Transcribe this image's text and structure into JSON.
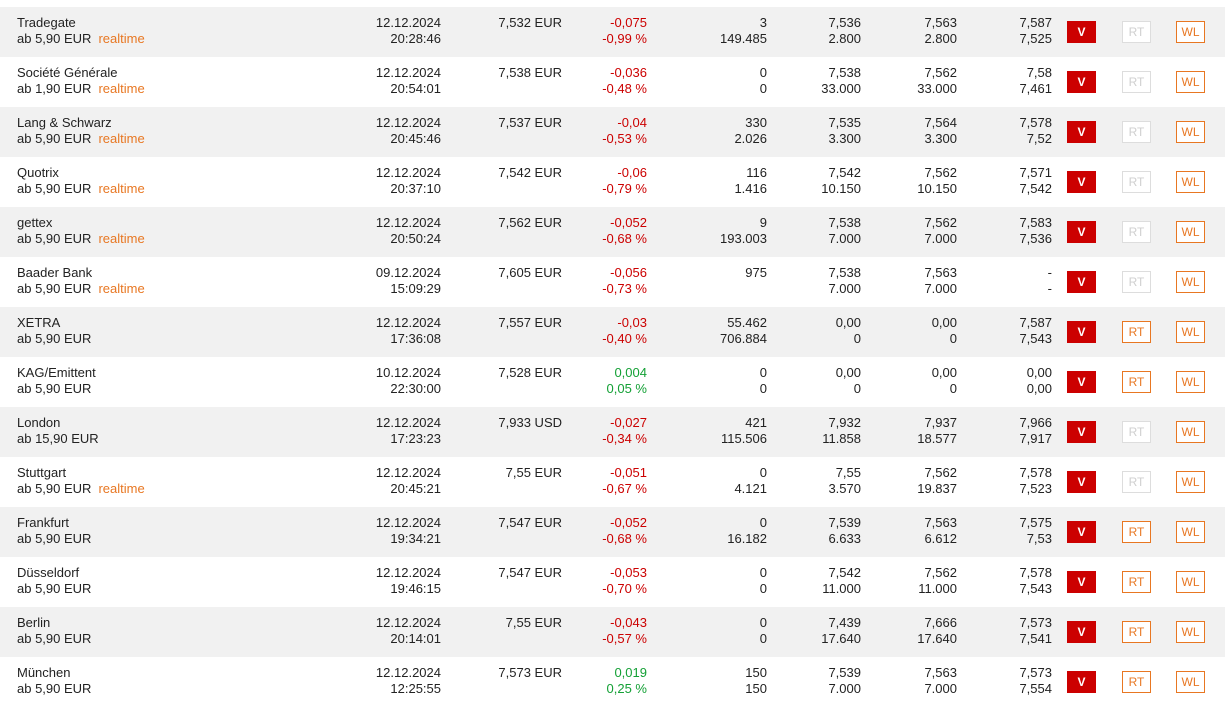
{
  "buttons": {
    "v": "V",
    "rt": "RT",
    "wl": "WL"
  },
  "colors": {
    "negative": "#cc0000",
    "positive": "#13a035",
    "accent": "#e87722",
    "v_button": "#cc0000"
  },
  "rows": [
    {
      "name": "Tradegate",
      "fee": "ab 5,90 EUR",
      "realtime": "realtime",
      "date": "12.12.2024",
      "time": "20:28:46",
      "price": "7,532 EUR",
      "change_abs": "-0,075",
      "change_pct": "-0,99 %",
      "trend": "neg",
      "vol1": "3",
      "vol2": "149.485",
      "bid": "7,536",
      "bid_size": "2.800",
      "ask": "7,563",
      "ask_size": "2.800",
      "high": "7,587",
      "low": "7,525",
      "rt_enabled": false
    },
    {
      "name": "Société Générale",
      "fee": "ab 1,90 EUR",
      "realtime": "realtime",
      "date": "12.12.2024",
      "time": "20:54:01",
      "price": "7,538 EUR",
      "change_abs": "-0,036",
      "change_pct": "-0,48 %",
      "trend": "neg",
      "vol1": "0",
      "vol2": "0",
      "bid": "7,538",
      "bid_size": "33.000",
      "ask": "7,562",
      "ask_size": "33.000",
      "high": "7,58",
      "low": "7,461",
      "rt_enabled": false
    },
    {
      "name": "Lang & Schwarz",
      "fee": "ab 5,90 EUR",
      "realtime": "realtime",
      "date": "12.12.2024",
      "time": "20:45:46",
      "price": "7,537 EUR",
      "change_abs": "-0,04",
      "change_pct": "-0,53 %",
      "trend": "neg",
      "vol1": "330",
      "vol2": "2.026",
      "bid": "7,535",
      "bid_size": "3.300",
      "ask": "7,564",
      "ask_size": "3.300",
      "high": "7,578",
      "low": "7,52",
      "rt_enabled": false
    },
    {
      "name": "Quotrix",
      "fee": "ab 5,90 EUR",
      "realtime": "realtime",
      "date": "12.12.2024",
      "time": "20:37:10",
      "price": "7,542 EUR",
      "change_abs": "-0,06",
      "change_pct": "-0,79 %",
      "trend": "neg",
      "vol1": "116",
      "vol2": "1.416",
      "bid": "7,542",
      "bid_size": "10.150",
      "ask": "7,562",
      "ask_size": "10.150",
      "high": "7,571",
      "low": "7,542",
      "rt_enabled": false
    },
    {
      "name": "gettex",
      "fee": "ab 5,90 EUR",
      "realtime": "realtime",
      "date": "12.12.2024",
      "time": "20:50:24",
      "price": "7,562 EUR",
      "change_abs": "-0,052",
      "change_pct": "-0,68 %",
      "trend": "neg",
      "vol1": "9",
      "vol2": "193.003",
      "bid": "7,538",
      "bid_size": "7.000",
      "ask": "7,562",
      "ask_size": "7.000",
      "high": "7,583",
      "low": "7,536",
      "rt_enabled": false
    },
    {
      "name": "Baader Bank",
      "fee": "ab 5,90 EUR",
      "realtime": "realtime",
      "date": "09.12.2024",
      "time": "15:09:29",
      "price": "7,605 EUR",
      "change_abs": "-0,056",
      "change_pct": "-0,73 %",
      "trend": "neg",
      "vol1": "975",
      "vol2": "",
      "bid": "7,538",
      "bid_size": "7.000",
      "ask": "7,563",
      "ask_size": "7.000",
      "high": "-",
      "low": "-",
      "rt_enabled": false
    },
    {
      "name": "XETRA",
      "fee": "ab 5,90 EUR",
      "realtime": "",
      "date": "12.12.2024",
      "time": "17:36:08",
      "price": "7,557 EUR",
      "change_abs": "-0,03",
      "change_pct": "-0,40 %",
      "trend": "neg",
      "vol1": "55.462",
      "vol2": "706.884",
      "bid": "0,00",
      "bid_size": "0",
      "ask": "0,00",
      "ask_size": "0",
      "high": "7,587",
      "low": "7,543",
      "rt_enabled": true
    },
    {
      "name": "KAG/Emittent",
      "fee": "ab 5,90 EUR",
      "realtime": "",
      "date": "10.12.2024",
      "time": "22:30:00",
      "price": "7,528 EUR",
      "change_abs": "0,004",
      "change_pct": "0,05 %",
      "trend": "pos",
      "vol1": "0",
      "vol2": "0",
      "bid": "0,00",
      "bid_size": "0",
      "ask": "0,00",
      "ask_size": "0",
      "high": "0,00",
      "low": "0,00",
      "rt_enabled": true
    },
    {
      "name": "London",
      "fee": "ab 15,90 EUR",
      "realtime": "",
      "date": "12.12.2024",
      "time": "17:23:23",
      "price": "7,933 USD",
      "change_abs": "-0,027",
      "change_pct": "-0,34 %",
      "trend": "neg",
      "vol1": "421",
      "vol2": "115.506",
      "bid": "7,932",
      "bid_size": "11.858",
      "ask": "7,937",
      "ask_size": "18.577",
      "high": "7,966",
      "low": "7,917",
      "rt_enabled": false
    },
    {
      "name": "Stuttgart",
      "fee": "ab 5,90 EUR",
      "realtime": "realtime",
      "date": "12.12.2024",
      "time": "20:45:21",
      "price": "7,55 EUR",
      "change_abs": "-0,051",
      "change_pct": "-0,67 %",
      "trend": "neg",
      "vol1": "0",
      "vol2": "4.121",
      "bid": "7,55",
      "bid_size": "3.570",
      "ask": "7,562",
      "ask_size": "19.837",
      "high": "7,578",
      "low": "7,523",
      "rt_enabled": false
    },
    {
      "name": "Frankfurt",
      "fee": "ab 5,90 EUR",
      "realtime": "",
      "date": "12.12.2024",
      "time": "19:34:21",
      "price": "7,547 EUR",
      "change_abs": "-0,052",
      "change_pct": "-0,68 %",
      "trend": "neg",
      "vol1": "0",
      "vol2": "16.182",
      "bid": "7,539",
      "bid_size": "6.633",
      "ask": "7,563",
      "ask_size": "6.612",
      "high": "7,575",
      "low": "7,53",
      "rt_enabled": true
    },
    {
      "name": "Düsseldorf",
      "fee": "ab 5,90 EUR",
      "realtime": "",
      "date": "12.12.2024",
      "time": "19:46:15",
      "price": "7,547 EUR",
      "change_abs": "-0,053",
      "change_pct": "-0,70 %",
      "trend": "neg",
      "vol1": "0",
      "vol2": "0",
      "bid": "7,542",
      "bid_size": "11.000",
      "ask": "7,562",
      "ask_size": "11.000",
      "high": "7,578",
      "low": "7,543",
      "rt_enabled": true
    },
    {
      "name": "Berlin",
      "fee": "ab 5,90 EUR",
      "realtime": "",
      "date": "12.12.2024",
      "time": "20:14:01",
      "price": "7,55 EUR",
      "change_abs": "-0,043",
      "change_pct": "-0,57 %",
      "trend": "neg",
      "vol1": "0",
      "vol2": "0",
      "bid": "7,439",
      "bid_size": "17.640",
      "ask": "7,666",
      "ask_size": "17.640",
      "high": "7,573",
      "low": "7,541",
      "rt_enabled": true
    },
    {
      "name": "München",
      "fee": "ab 5,90 EUR",
      "realtime": "",
      "date": "12.12.2024",
      "time": "12:25:55",
      "price": "7,573 EUR",
      "change_abs": "0,019",
      "change_pct": "0,25 %",
      "trend": "pos",
      "vol1": "150",
      "vol2": "150",
      "bid": "7,539",
      "bid_size": "7.000",
      "ask": "7,563",
      "ask_size": "7.000",
      "high": "7,573",
      "low": "7,554",
      "rt_enabled": true
    }
  ]
}
